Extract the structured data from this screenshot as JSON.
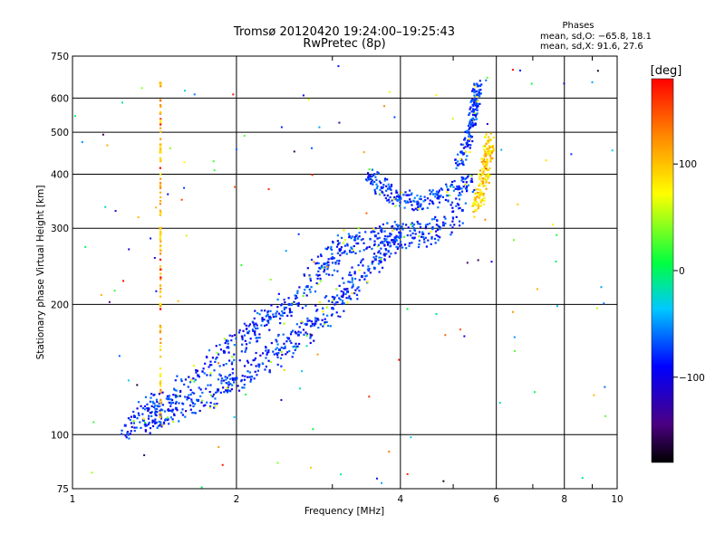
{
  "chart_data": {
    "type": "scatter",
    "title": "Tromsø 20120420 19:24:00–19:25:43",
    "subtitle": "RwPretec (8p)",
    "xlabel": "Frequency [MHz]",
    "ylabel": "Stationary phase Virtual Height [km]",
    "xscale": "log",
    "yscale": "log",
    "xlim": [
      1,
      10
    ],
    "ylim": [
      75,
      750
    ],
    "xticks": [
      1,
      2,
      4,
      6,
      8,
      10
    ],
    "xtick_labels": [
      "1",
      "2",
      "4",
      "6",
      "8",
      "10"
    ],
    "yticks": [
      75,
      100,
      200,
      300,
      400,
      500,
      600,
      750
    ],
    "ytick_labels": [
      "75",
      "100",
      "200",
      "300",
      "400",
      "500",
      "600",
      "750"
    ],
    "grid": true,
    "stats": {
      "heading": "Phases",
      "line_o": "mean, sd,O: −65.8, 18.1",
      "line_x": "mean, sd,X:  91.6, 27.6",
      "mean_o": -65.8,
      "sd_o": 18.1,
      "mean_x": 91.6,
      "sd_x": 27.6
    },
    "colorbar": {
      "label": "[deg]",
      "range": [
        -180,
        180
      ],
      "ticks": [
        100,
        0,
        -100
      ],
      "tick_labels": [
        "100",
        "0",
        "−100"
      ],
      "colormap": "rainbow (black → purple → blue → cyan → green → yellow → orange → red)"
    },
    "traces": [
      {
        "name": "lower trace (O-mode, blue)",
        "phase_deg": -95,
        "points": [
          [
            1.25,
            105
          ],
          [
            1.35,
            108
          ],
          [
            1.45,
            111
          ],
          [
            1.55,
            115
          ],
          [
            1.7,
            120
          ],
          [
            1.85,
            127
          ],
          [
            2.0,
            135
          ],
          [
            2.2,
            145
          ],
          [
            2.4,
            157
          ],
          [
            2.6,
            170
          ],
          [
            2.8,
            183
          ],
          [
            3.0,
            196
          ],
          [
            3.2,
            214
          ],
          [
            3.4,
            232
          ],
          [
            3.6,
            254
          ],
          [
            3.8,
            278
          ],
          [
            4.0,
            292
          ]
        ]
      },
      {
        "name": "upper trace (blue)",
        "phase_deg": -95,
        "points": [
          [
            1.3,
            110
          ],
          [
            1.5,
            121
          ],
          [
            1.7,
            137
          ],
          [
            1.9,
            155
          ],
          [
            2.1,
            172
          ],
          [
            2.3,
            187
          ],
          [
            2.5,
            200
          ],
          [
            2.7,
            220
          ],
          [
            2.9,
            248
          ],
          [
            3.1,
            268
          ],
          [
            3.3,
            282
          ],
          [
            3.6,
            288
          ],
          [
            4.0,
            287
          ],
          [
            4.4,
            291
          ],
          [
            4.8,
            305
          ],
          [
            5.2,
            330
          ]
        ]
      },
      {
        "name": "arched trace 350-400 km",
        "phase_deg": -90,
        "points": [
          [
            3.5,
            395
          ],
          [
            3.7,
            372
          ],
          [
            4.0,
            352
          ],
          [
            4.3,
            345
          ],
          [
            4.7,
            352
          ],
          [
            5.1,
            370
          ],
          [
            5.4,
            385
          ]
        ]
      },
      {
        "name": "cusp near 5.5 MHz",
        "phase_deg": -90,
        "points": [
          [
            5.1,
            420
          ],
          [
            5.3,
            470
          ],
          [
            5.4,
            520
          ],
          [
            5.45,
            560
          ],
          [
            5.5,
            600
          ],
          [
            5.55,
            640
          ]
        ]
      },
      {
        "name": "X-mode echoes (yellow-green)",
        "phase_deg": 90,
        "points": [
          [
            5.5,
            330
          ],
          [
            5.6,
            360
          ],
          [
            5.7,
            390
          ],
          [
            5.75,
            420
          ],
          [
            5.8,
            450
          ],
          [
            5.85,
            480
          ]
        ]
      },
      {
        "name": "vertical stripe at 1.45 MHz",
        "phase_deg": 100,
        "points": [
          [
            1.45,
            110
          ],
          [
            1.45,
            200
          ],
          [
            1.45,
            300
          ],
          [
            1.45,
            450
          ],
          [
            1.45,
            650
          ]
        ]
      }
    ]
  }
}
